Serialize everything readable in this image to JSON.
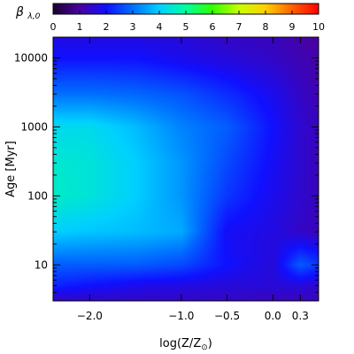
{
  "chart_data": {
    "type": "heatmap",
    "x_scale": "linear",
    "y_scale": "log",
    "xlabel": "log(Z/Z",
    "xlabel_sub": "⊙",
    "xlabel_close": ")",
    "ylabel": "Age [Myr]",
    "xlim": [
      -2.4,
      0.5
    ],
    "ylim": [
      3,
      20000
    ],
    "x_ticks": [
      {
        "value": -2.0,
        "label": "−2.0"
      },
      {
        "value": -1.0,
        "label": "−1.0"
      },
      {
        "value": -0.5,
        "label": "−0.5"
      },
      {
        "value": 0.0,
        "label": "0.0"
      },
      {
        "value": 0.3,
        "label": "0.3"
      }
    ],
    "y_ticks": [
      {
        "value": 10,
        "label": "10"
      },
      {
        "value": 100,
        "label": "100"
      },
      {
        "value": 1000,
        "label": "1000"
      },
      {
        "value": 10000,
        "label": "10000"
      }
    ],
    "colorbar": {
      "label": "β",
      "label_sub": "λ,0",
      "min": 0,
      "max": 10,
      "ticks": [
        "0",
        "1",
        "2",
        "3",
        "4",
        "5",
        "6",
        "7",
        "8",
        "9",
        "10"
      ],
      "colors": [
        "#1a0030",
        "#4b00a0",
        "#1010ff",
        "#0070ff",
        "#00d0ff",
        "#00ffa0",
        "#30ff00",
        "#c8ff00",
        "#ffd000",
        "#ff6000",
        "#ff0000"
      ]
    },
    "grid": false,
    "legend": "none",
    "z_description": "beta value field over age vs metallicity",
    "z_samples": {
      "x": [
        -2.4,
        -2.0,
        -1.5,
        -1.0,
        -0.5,
        0.0,
        0.3,
        0.5
      ],
      "y": [
        3,
        5,
        10,
        30,
        100,
        300,
        1000,
        3000,
        10000,
        20000
      ],
      "z": [
        [
          1.4,
          1.4,
          1.4,
          1.4,
          1.4,
          1.3,
          1.3,
          1.3
        ],
        [
          2.2,
          2.0,
          1.8,
          1.7,
          1.6,
          1.6,
          1.6,
          1.5
        ],
        [
          2.8,
          2.8,
          2.8,
          2.6,
          2.0,
          1.6,
          2.8,
          2.4
        ],
        [
          4.0,
          3.9,
          3.8,
          3.6,
          1.9,
          1.7,
          1.4,
          1.3
        ],
        [
          4.6,
          4.4,
          4.0,
          3.4,
          2.4,
          1.8,
          1.5,
          1.3
        ],
        [
          4.5,
          4.4,
          4.0,
          3.4,
          2.6,
          1.9,
          1.5,
          1.3
        ],
        [
          4.2,
          4.2,
          3.8,
          3.2,
          2.8,
          2.0,
          1.5,
          1.3
        ],
        [
          3.0,
          3.0,
          2.9,
          2.7,
          2.3,
          1.8,
          1.4,
          1.2
        ],
        [
          2.0,
          2.0,
          2.0,
          1.8,
          1.6,
          1.4,
          1.2,
          1.1
        ],
        [
          1.7,
          1.7,
          1.7,
          1.6,
          1.4,
          1.3,
          1.1,
          1.0
        ]
      ]
    }
  }
}
